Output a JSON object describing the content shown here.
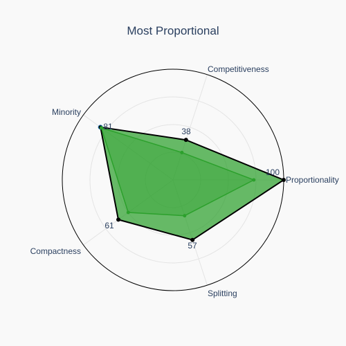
{
  "chart_data": {
    "type": "radar",
    "title": "Most Proportional",
    "categories": [
      "Proportionality",
      "Competitiveness",
      "Minority",
      "Compactness",
      "Splitting"
    ],
    "rlim": [
      0,
      100
    ],
    "grid": true,
    "series": [
      {
        "values": [
          100,
          38,
          81,
          61,
          57
        ],
        "color": "#2ca02c",
        "outline": "#000000"
      },
      {
        "values": [
          73,
          26,
          80,
          50,
          34
        ],
        "color": "#2ca02c",
        "outline": "#2ca02c"
      }
    ],
    "value_labels": [
      "100",
      "38",
      "81",
      "61",
      "57"
    ]
  }
}
